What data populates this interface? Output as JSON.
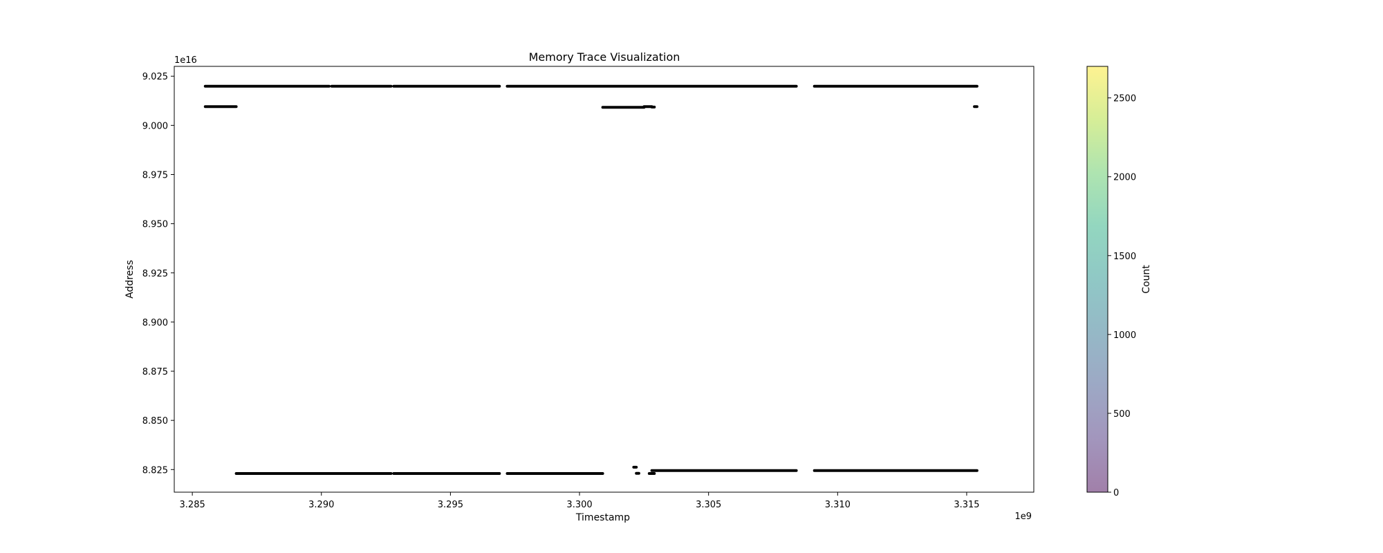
{
  "chart_data": {
    "type": "scatter",
    "title": "Memory Trace Visualization",
    "xlabel": "Timestamp",
    "ylabel": "Address",
    "x_offset_label": "1e9",
    "y_offset_label": "1e16",
    "xlim": [
      3.2843,
      3.3176
    ],
    "ylim": [
      8.8135,
      9.03
    ],
    "x_ticks": [
      3.285,
      3.29,
      3.295,
      3.3,
      3.305,
      3.31,
      3.315
    ],
    "x_tick_labels": [
      "3.285",
      "3.290",
      "3.295",
      "3.300",
      "3.305",
      "3.310",
      "3.315"
    ],
    "y_ticks": [
      8.825,
      8.85,
      8.875,
      8.9,
      8.925,
      8.95,
      8.975,
      9.0,
      9.025
    ],
    "y_tick_labels": [
      "8.825",
      "8.850",
      "8.875",
      "8.900",
      "8.925",
      "8.950",
      "8.975",
      "9.000",
      "9.025"
    ],
    "grid": false,
    "point_color": "#000000",
    "segments": [
      {
        "x0": 3.2855,
        "x1": 3.2903,
        "y": 9.0199
      },
      {
        "x0": 3.2904,
        "x1": 3.2927,
        "y": 9.0199
      },
      {
        "x0": 3.2928,
        "x1": 3.2969,
        "y": 9.0199
      },
      {
        "x0": 3.2972,
        "x1": 3.3084,
        "y": 9.0199
      },
      {
        "x0": 3.3091,
        "x1": 3.3154,
        "y": 9.0199
      },
      {
        "x0": 3.2855,
        "x1": 3.2867,
        "y": 9.0095
      },
      {
        "x0": 3.3009,
        "x1": 3.3025,
        "y": 9.0092
      },
      {
        "x0": 3.3025,
        "x1": 3.3028,
        "y": 9.0095
      },
      {
        "x0": 3.3028,
        "x1": 3.3029,
        "y": 9.0093
      },
      {
        "x0": 3.3153,
        "x1": 3.3154,
        "y": 9.0095
      },
      {
        "x0": 3.2867,
        "x1": 3.2927,
        "y": 8.823
      },
      {
        "x0": 3.2928,
        "x1": 3.2969,
        "y": 8.823
      },
      {
        "x0": 3.2972,
        "x1": 3.3009,
        "y": 8.823
      },
      {
        "x0": 3.3021,
        "x1": 3.3022,
        "y": 8.8262
      },
      {
        "x0": 3.3022,
        "x1": 3.3023,
        "y": 8.8231
      },
      {
        "x0": 3.3027,
        "x1": 3.3029,
        "y": 8.823
      },
      {
        "x0": 3.3028,
        "x1": 3.3084,
        "y": 8.8245
      },
      {
        "x0": 3.3091,
        "x1": 3.3154,
        "y": 8.8245
      }
    ],
    "colorbar": {
      "label": "Count",
      "colormap": "viridis",
      "alpha": 0.5,
      "range": [
        0,
        2700
      ],
      "ticks": [
        0,
        500,
        1000,
        1500,
        2000,
        2500
      ],
      "tick_labels": [
        "0",
        "500",
        "1000",
        "1500",
        "2000",
        "2500"
      ]
    }
  }
}
